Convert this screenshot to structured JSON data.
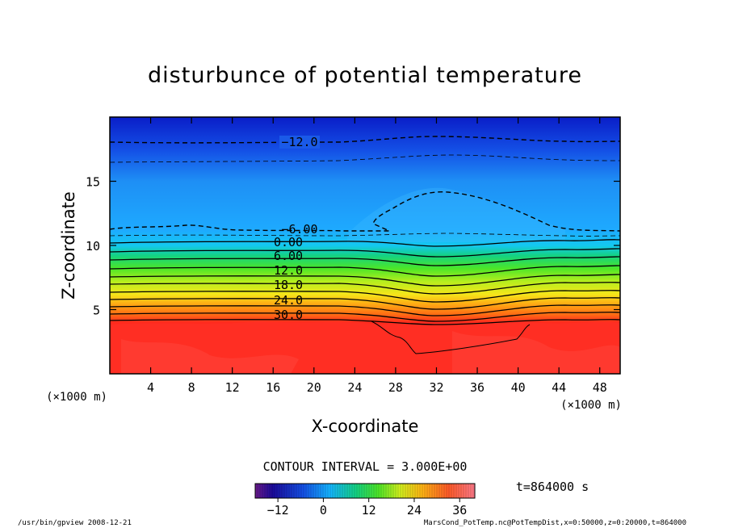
{
  "chart_data": {
    "type": "contour",
    "title": "disturbunce of potential temperature",
    "xlabel": "X-coordinate",
    "ylabel": "Z-coordinate",
    "x_unit_left": "(×1000 m)",
    "x_unit_right": "(×1000 m)",
    "xlim": [
      0,
      50
    ],
    "ylim": [
      0,
      20
    ],
    "x_ticks": [
      4,
      8,
      12,
      16,
      20,
      24,
      28,
      32,
      36,
      40,
      44,
      48
    ],
    "y_ticks": [
      5,
      10,
      15
    ],
    "contour_interval_text": "CONTOUR INTERVAL = 3.000E+00",
    "time_label": "t=864000 s",
    "contour_labels": [
      {
        "text": "−12.0",
        "level": -12
      },
      {
        "text": "−6.00",
        "level": -6
      },
      {
        "text": "0.00",
        "level": 0
      },
      {
        "text": "6.00",
        "level": 6
      },
      {
        "text": "12.0",
        "level": 12
      },
      {
        "text": "18.0",
        "level": 18
      },
      {
        "text": "24.0",
        "level": 24
      },
      {
        "text": "30.0",
        "level": 30
      }
    ],
    "colorbar": {
      "min": -18,
      "max": 40,
      "ticks": [
        -12,
        0,
        12,
        24,
        36
      ],
      "tick_labels": [
        "−12",
        "0",
        "12",
        "24",
        "36"
      ]
    },
    "footer_left": "/usr/bin/gpview   2008-12-21",
    "footer_right": "MarsCond_PotTemp.nc@PotTempDist,x=0:50000,z=0:20000,t=864000"
  }
}
